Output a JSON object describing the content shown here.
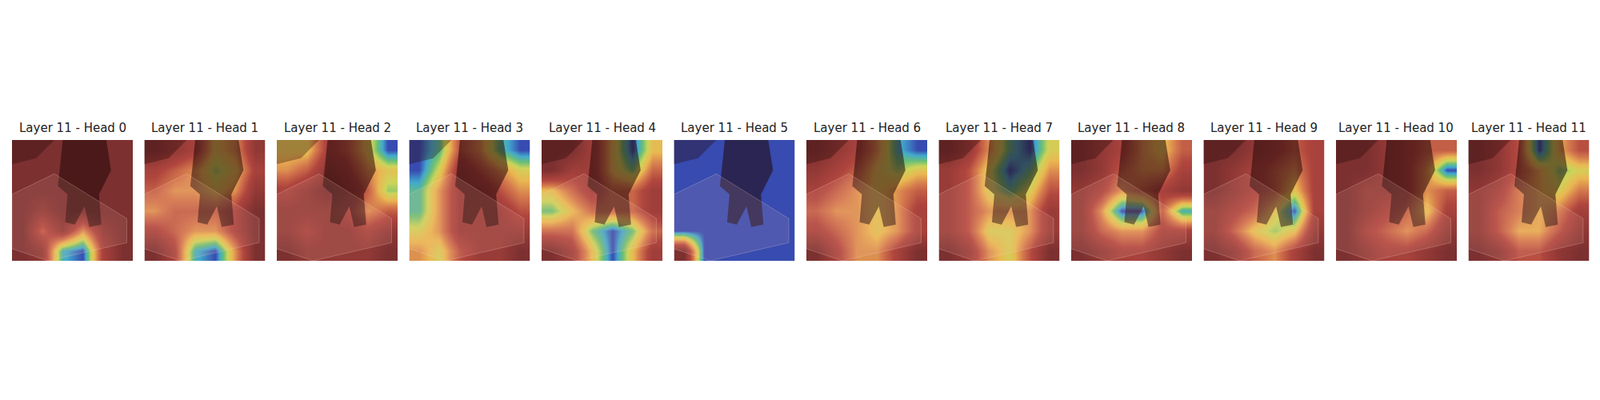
{
  "chart_data": [
    {
      "type": "heatmap",
      "title": "Layer 11 - Head 0",
      "tick_labels": false,
      "cells": [
        [
          0.1,
          0.1,
          0.1,
          0.1,
          0.1,
          0.1
        ],
        [
          0.1,
          0.1,
          0.1,
          0.1,
          0.1,
          0.1
        ],
        [
          0.1,
          0.1,
          0.1,
          0.1,
          0.1,
          0.1
        ],
        [
          0.1,
          0.2,
          0.1,
          0.1,
          0.1,
          0.1
        ],
        [
          0.1,
          0.4,
          0.2,
          0.5,
          0.2,
          0.1
        ],
        [
          0.1,
          0.2,
          0.8,
          0.9,
          0.3,
          0.1
        ]
      ]
    },
    {
      "type": "heatmap",
      "title": "Layer 11 - Head 1",
      "tick_labels": false,
      "cells": [
        [
          0.2,
          0.3,
          0.4,
          0.7,
          0.6,
          0.3
        ],
        [
          0.4,
          0.5,
          0.6,
          0.8,
          0.7,
          0.4
        ],
        [
          0.5,
          0.6,
          0.6,
          0.7,
          0.6,
          0.3
        ],
        [
          0.6,
          0.5,
          0.5,
          0.5,
          0.4,
          0.2
        ],
        [
          0.4,
          0.5,
          0.6,
          0.6,
          0.4,
          0.2
        ],
        [
          0.2,
          0.4,
          0.9,
          1.0,
          0.6,
          0.2
        ]
      ]
    },
    {
      "type": "heatmap",
      "title": "Layer 11 - Head 2",
      "tick_labels": false,
      "cells": [
        [
          0.6,
          0.6,
          0.3,
          0.4,
          0.6,
          0.9
        ],
        [
          0.5,
          0.4,
          0.2,
          0.3,
          0.5,
          0.6
        ],
        [
          0.3,
          0.2,
          0.1,
          0.2,
          0.4,
          0.7
        ],
        [
          0.2,
          0.2,
          0.2,
          0.3,
          0.5,
          0.4
        ],
        [
          0.2,
          0.3,
          0.2,
          0.2,
          0.3,
          0.2
        ],
        [
          0.1,
          0.2,
          0.2,
          0.2,
          0.2,
          0.1
        ]
      ]
    },
    {
      "type": "heatmap",
      "title": "Layer 11 - Head 3",
      "tick_labels": false,
      "cells": [
        [
          0.7,
          0.6,
          0.3,
          0.4,
          0.6,
          0.7
        ],
        [
          0.7,
          0.5,
          0.2,
          0.3,
          0.4,
          0.5
        ],
        [
          0.6,
          0.4,
          0.2,
          0.2,
          0.3,
          0.4
        ],
        [
          0.6,
          0.4,
          0.2,
          0.2,
          0.2,
          0.3
        ],
        [
          0.5,
          0.4,
          0.2,
          0.2,
          0.2,
          0.2
        ],
        [
          0.4,
          0.5,
          0.3,
          0.2,
          0.2,
          0.1
        ]
      ]
    },
    {
      "type": "heatmap",
      "title": "Layer 11 - Head 4",
      "tick_labels": false,
      "cells": [
        [
          0.1,
          0.1,
          0.2,
          0.4,
          0.6,
          0.4
        ],
        [
          0.1,
          0.2,
          0.2,
          0.4,
          0.5,
          0.3
        ],
        [
          0.4,
          0.3,
          0.2,
          0.3,
          0.3,
          0.2
        ],
        [
          0.5,
          0.4,
          0.3,
          0.3,
          0.3,
          0.2
        ],
        [
          0.3,
          0.3,
          0.5,
          0.6,
          0.5,
          0.3
        ],
        [
          0.1,
          0.2,
          0.4,
          0.6,
          0.4,
          0.2
        ]
      ]
    },
    {
      "type": "heatmap",
      "title": "Layer 11 - Head 5",
      "tick_labels": false,
      "cells": [
        [
          0.1,
          0.1,
          0.1,
          0.1,
          0.1,
          0.1
        ],
        [
          0.1,
          0.1,
          0.1,
          0.1,
          0.1,
          0.1
        ],
        [
          0.1,
          0.1,
          0.1,
          0.1,
          0.1,
          0.1
        ],
        [
          0.1,
          0.1,
          0.1,
          0.1,
          0.1,
          0.1
        ],
        [
          0.1,
          0.1,
          0.1,
          0.1,
          0.1,
          0.1
        ],
        [
          0.0,
          0.1,
          0.1,
          0.1,
          0.1,
          0.1
        ]
      ]
    },
    {
      "type": "heatmap",
      "title": "Layer 11 - Head 6",
      "tick_labels": false,
      "cells": [
        [
          0.1,
          0.2,
          0.3,
          0.5,
          0.8,
          0.9
        ],
        [
          0.2,
          0.3,
          0.4,
          0.6,
          0.7,
          0.6
        ],
        [
          0.3,
          0.4,
          0.5,
          0.6,
          0.5,
          0.4
        ],
        [
          0.4,
          0.5,
          0.5,
          0.6,
          0.5,
          0.3
        ],
        [
          0.3,
          0.4,
          0.5,
          0.6,
          0.5,
          0.3
        ],
        [
          0.1,
          0.3,
          0.5,
          0.5,
          0.3,
          0.1
        ]
      ]
    },
    {
      "type": "heatmap",
      "title": "Layer 11 - Head 7",
      "tick_labels": false,
      "cells": [
        [
          0.1,
          0.2,
          0.4,
          0.6,
          0.7,
          0.5
        ],
        [
          0.2,
          0.3,
          0.5,
          0.7,
          0.6,
          0.4
        ],
        [
          0.2,
          0.3,
          0.5,
          0.6,
          0.5,
          0.3
        ],
        [
          0.2,
          0.3,
          0.4,
          0.4,
          0.4,
          0.2
        ],
        [
          0.2,
          0.3,
          0.5,
          0.5,
          0.4,
          0.2
        ],
        [
          0.1,
          0.2,
          0.4,
          0.5,
          0.3,
          0.1
        ]
      ]
    },
    {
      "type": "heatmap",
      "title": "Layer 11 - Head 8",
      "tick_labels": false,
      "cells": [
        [
          0.1,
          0.2,
          0.3,
          0.5,
          0.6,
          0.4
        ],
        [
          0.1,
          0.2,
          0.4,
          0.5,
          0.5,
          0.3
        ],
        [
          0.2,
          0.3,
          0.5,
          0.4,
          0.3,
          0.2
        ],
        [
          0.2,
          0.5,
          0.9,
          0.9,
          0.4,
          0.8
        ],
        [
          0.2,
          0.4,
          0.5,
          0.5,
          0.3,
          0.3
        ],
        [
          0.1,
          0.2,
          0.3,
          0.3,
          0.2,
          0.1
        ]
      ]
    },
    {
      "type": "heatmap",
      "title": "Layer 11 - Head 9",
      "tick_labels": false,
      "cells": [
        [
          0.1,
          0.1,
          0.2,
          0.3,
          0.4,
          0.3
        ],
        [
          0.1,
          0.2,
          0.3,
          0.4,
          0.5,
          0.3
        ],
        [
          0.1,
          0.2,
          0.3,
          0.4,
          0.6,
          0.3
        ],
        [
          0.2,
          0.3,
          0.4,
          0.6,
          0.9,
          0.3
        ],
        [
          0.2,
          0.4,
          0.6,
          0.7,
          0.6,
          0.2
        ],
        [
          0.1,
          0.2,
          0.4,
          0.5,
          0.3,
          0.1
        ]
      ]
    },
    {
      "type": "heatmap",
      "title": "Layer 11 - Head 10",
      "tick_labels": false,
      "cells": [
        [
          0.1,
          0.1,
          0.2,
          0.3,
          0.4,
          0.4
        ],
        [
          0.1,
          0.1,
          0.2,
          0.3,
          0.5,
          0.9
        ],
        [
          0.1,
          0.2,
          0.2,
          0.3,
          0.5,
          0.4
        ],
        [
          0.1,
          0.2,
          0.3,
          0.4,
          0.6,
          0.3
        ],
        [
          0.1,
          0.3,
          0.4,
          0.5,
          0.4,
          0.2
        ],
        [
          0.1,
          0.2,
          0.3,
          0.3,
          0.2,
          0.1
        ]
      ]
    },
    {
      "type": "heatmap",
      "title": "Layer 11 - Head 11",
      "tick_labels": false,
      "cells": [
        [
          0.1,
          0.2,
          0.4,
          1.0,
          0.6,
          0.4
        ],
        [
          0.1,
          0.2,
          0.4,
          0.6,
          0.8,
          0.7
        ],
        [
          0.2,
          0.3,
          0.5,
          0.6,
          0.7,
          0.5
        ],
        [
          0.2,
          0.4,
          0.5,
          0.6,
          0.5,
          0.3
        ],
        [
          0.2,
          0.4,
          0.6,
          0.6,
          0.4,
          0.2
        ],
        [
          0.1,
          0.2,
          0.4,
          0.4,
          0.2,
          0.1
        ]
      ]
    }
  ]
}
